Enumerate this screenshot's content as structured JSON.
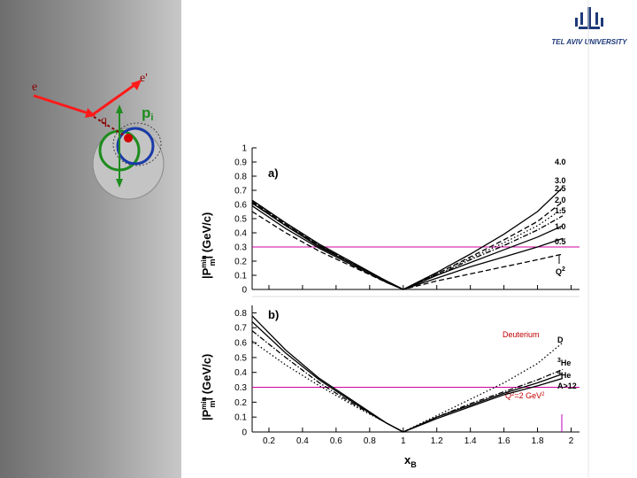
{
  "diagram": {
    "labels": {
      "e_in": "e",
      "e_out": "e'",
      "q": "q",
      "p": "p",
      "p_sub": "i"
    },
    "colors": {
      "electron": "#ff1a1a",
      "proton": "#1e8c1e",
      "nucleus": "#b0b0b0"
    }
  },
  "logo": {
    "text": "TEL AVIV UNIVERSITY",
    "icon": "tel-aviv-university-emblem-icon",
    "color": "#1f3a7a"
  },
  "chart_data": [
    {
      "type": "line",
      "panel_label": "a)",
      "ylabel": "|P",
      "ylabel_sup": "min",
      "ylabel_sub": "m",
      "ylabel_unit": "| (GeV/c)",
      "xlabel": "",
      "xlim": [
        0.1,
        2.05
      ],
      "ylim": [
        0,
        1
      ],
      "yticks": [
        "0",
        "0.1",
        "0.2",
        "0.3",
        "0.4",
        "0.5",
        "0.6",
        "0.7",
        "0.8",
        "0.9",
        "1"
      ],
      "reference_line": {
        "y": 0.3,
        "color": "#d000a0"
      },
      "legend_title": "Q",
      "legend_title_sup": "2",
      "series": [
        {
          "name": "4.0",
          "style": "solid",
          "x": [
            0.1,
            0.3,
            0.5,
            0.7,
            0.9,
            1.0,
            1.2,
            1.4,
            1.6,
            1.8,
            1.95
          ],
          "y": [
            0.63,
            0.47,
            0.32,
            0.19,
            0.06,
            0.0,
            0.12,
            0.25,
            0.39,
            0.55,
            0.72
          ]
        },
        {
          "name": "3.0",
          "style": "dashed",
          "x": [
            0.1,
            0.3,
            0.5,
            0.7,
            0.9,
            1.0,
            1.2,
            1.4,
            1.6,
            1.8,
            1.95
          ],
          "y": [
            0.62,
            0.46,
            0.31,
            0.18,
            0.06,
            0.0,
            0.11,
            0.23,
            0.35,
            0.48,
            0.62
          ]
        },
        {
          "name": "2.5",
          "style": "dotted",
          "x": [
            0.1,
            0.3,
            0.5,
            0.7,
            0.9,
            1.0,
            1.2,
            1.4,
            1.6,
            1.8,
            1.95
          ],
          "y": [
            0.62,
            0.46,
            0.31,
            0.18,
            0.06,
            0.0,
            0.11,
            0.22,
            0.33,
            0.45,
            0.57
          ]
        },
        {
          "name": "2.0",
          "style": "dashdot",
          "x": [
            0.1,
            0.3,
            0.5,
            0.7,
            0.9,
            1.0,
            1.2,
            1.4,
            1.6,
            1.8,
            1.95
          ],
          "y": [
            0.61,
            0.45,
            0.31,
            0.18,
            0.06,
            0.0,
            0.1,
            0.21,
            0.31,
            0.42,
            0.52
          ]
        },
        {
          "name": "1.5",
          "style": "solid",
          "x": [
            0.1,
            0.3,
            0.5,
            0.7,
            0.9,
            1.0,
            1.2,
            1.4,
            1.6,
            1.8,
            1.95
          ],
          "y": [
            0.61,
            0.45,
            0.3,
            0.18,
            0.06,
            0.0,
            0.1,
            0.19,
            0.28,
            0.37,
            0.45
          ]
        },
        {
          "name": "1.0",
          "style": "solid",
          "x": [
            0.1,
            0.3,
            0.5,
            0.7,
            0.9,
            1.0,
            1.2,
            1.4,
            1.6,
            1.8,
            1.95
          ],
          "y": [
            0.59,
            0.43,
            0.29,
            0.17,
            0.05,
            0.0,
            0.08,
            0.16,
            0.23,
            0.3,
            0.36
          ]
        },
        {
          "name": "0.5",
          "style": "dashed",
          "x": [
            0.1,
            0.3,
            0.5,
            0.7,
            0.9,
            1.0,
            1.2,
            1.4,
            1.6,
            1.8,
            1.95
          ],
          "y": [
            0.55,
            0.4,
            0.27,
            0.16,
            0.05,
            0.0,
            0.06,
            0.11,
            0.16,
            0.21,
            0.25
          ]
        }
      ]
    },
    {
      "type": "line",
      "panel_label": "b)",
      "ylabel": "|P",
      "ylabel_sup": "min",
      "ylabel_sub": "m",
      "ylabel_unit": "| (GeV/c)",
      "xlabel": "x",
      "xlabel_sub": "B",
      "xlim": [
        0.1,
        2.05
      ],
      "ylim": [
        0,
        0.85
      ],
      "xticks": [
        "0.2",
        "0.4",
        "0.6",
        "0.8",
        "1",
        "1.2",
        "1.4",
        "1.6",
        "1.8",
        "2"
      ],
      "yticks": [
        "0",
        "0.1",
        "0.2",
        "0.3",
        "0.4",
        "0.5",
        "0.6",
        "0.7",
        "0.8"
      ],
      "reference_line": {
        "y": 0.3,
        "color": "#d000a0"
      },
      "annotations": {
        "deuterium": "Deuterium",
        "q2_pre": "Q",
        "q2_sup1": "2",
        "q2_post": "=2 GeV",
        "q2_sup2": "2"
      },
      "series": [
        {
          "name": "D",
          "style": "dotted",
          "x": [
            0.1,
            0.3,
            0.5,
            0.7,
            0.9,
            1.0,
            1.2,
            1.4,
            1.6,
            1.8,
            1.95
          ],
          "y": [
            0.61,
            0.45,
            0.31,
            0.18,
            0.06,
            0.0,
            0.11,
            0.22,
            0.33,
            0.46,
            0.6
          ]
        },
        {
          "name": "3He",
          "style": "dashdot",
          "x": [
            0.1,
            0.3,
            0.5,
            0.7,
            0.9,
            1.0,
            1.2,
            1.4,
            1.6,
            1.8,
            1.95
          ],
          "y": [
            0.68,
            0.5,
            0.33,
            0.19,
            0.06,
            0.0,
            0.1,
            0.19,
            0.27,
            0.35,
            0.42
          ]
        },
        {
          "name": "4He",
          "style": "solid",
          "x": [
            0.1,
            0.3,
            0.5,
            0.7,
            0.9,
            1.0,
            1.2,
            1.4,
            1.6,
            1.8,
            1.95
          ],
          "y": [
            0.74,
            0.53,
            0.35,
            0.2,
            0.06,
            0.0,
            0.1,
            0.18,
            0.26,
            0.33,
            0.39
          ]
        },
        {
          "name": "A>12",
          "style": "solid",
          "x": [
            0.1,
            0.3,
            0.5,
            0.7,
            0.9,
            1.0,
            1.2,
            1.4,
            1.6,
            1.8,
            1.95
          ],
          "y": [
            0.78,
            0.55,
            0.36,
            0.21,
            0.06,
            0.0,
            0.09,
            0.17,
            0.25,
            0.31,
            0.36
          ]
        }
      ],
      "series_labels": [
        {
          "pre": "",
          "sup": "",
          "main": "D"
        },
        {
          "pre": "",
          "sup": "3",
          "main": "He"
        },
        {
          "pre": "",
          "sup": "4",
          "main": "He"
        },
        {
          "pre": "",
          "sup": "",
          "main": "A>12"
        }
      ]
    }
  ]
}
